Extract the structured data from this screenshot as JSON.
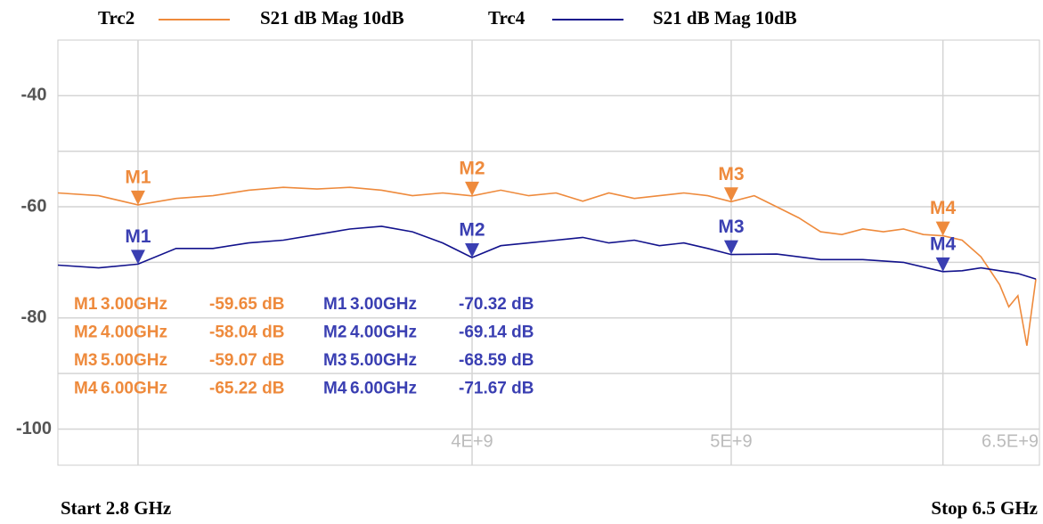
{
  "chart_data": {
    "type": "line",
    "xscale": "log",
    "xlim": [
      2800000000,
      6500000000
    ],
    "ylim": [
      -106.5,
      -30
    ],
    "xticks": [
      {
        "value": 4000000000,
        "label": "4E+9"
      },
      {
        "value": 5000000000,
        "label": "5E+9"
      },
      {
        "value": 6500000000,
        "label": "6.5E+9"
      }
    ],
    "xgrid": [
      3000000000,
      4000000000,
      5000000000,
      6000000000
    ],
    "yticks": [
      -40,
      -60,
      -80,
      -100
    ],
    "ygrid": [
      -100,
      -90,
      -80,
      -70,
      -60,
      -50,
      -40
    ],
    "grid": true,
    "start_label": "Start 2.8 GHz",
    "stop_label": "Stop 6.5 GHz",
    "series": [
      {
        "name": "Trc2",
        "label": "S21 dB Mag 10dB",
        "color": "#ee8a3c",
        "x": [
          2800000000,
          2900000000,
          3000000000,
          3100000000,
          3200000000,
          3300000000,
          3400000000,
          3500000000,
          3600000000,
          3700000000,
          3800000000,
          3900000000,
          4000000000,
          4100000000,
          4200000000,
          4300000000,
          4400000000,
          4500000000,
          4600000000,
          4700000000,
          4800000000,
          4900000000,
          5000000000,
          5100000000,
          5200000000,
          5300000000,
          5400000000,
          5500000000,
          5600000000,
          5700000000,
          5800000000,
          5900000000,
          6000000000,
          6100000000,
          6200000000,
          6300000000,
          6350000000,
          6400000000,
          6450000000,
          6500000000
        ],
        "values": [
          -57.5,
          -58,
          -59.65,
          -58.5,
          -58,
          -57,
          -56.5,
          -56.8,
          -56.5,
          -57,
          -58,
          -57.5,
          -58.04,
          -57,
          -58,
          -57.5,
          -59,
          -57.5,
          -58.5,
          -58,
          -57.5,
          -58,
          -59.07,
          -58,
          -60,
          -62,
          -64.5,
          -65,
          -64,
          -64.5,
          -64,
          -65,
          -65.22,
          -66,
          -69,
          -74,
          -78,
          -76,
          -85,
          -73
        ],
        "markers": [
          {
            "name": "M1",
            "x": 3000000000,
            "value": -59.65,
            "freq_label": "3.00GHz",
            "value_label": "-59.65 dB"
          },
          {
            "name": "M2",
            "x": 4000000000,
            "value": -58.04,
            "freq_label": "4.00GHz",
            "value_label": "-58.04 dB"
          },
          {
            "name": "M3",
            "x": 5000000000,
            "value": -59.07,
            "freq_label": "5.00GHz",
            "value_label": "-59.07 dB"
          },
          {
            "name": "M4",
            "x": 6000000000,
            "value": -65.22,
            "freq_label": "6.00GHz",
            "value_label": "-65.22 dB"
          }
        ]
      },
      {
        "name": "Trc4",
        "label": "S21 dB Mag 10dB",
        "color": "#12128c",
        "x": [
          2800000000,
          2900000000,
          3000000000,
          3100000000,
          3200000000,
          3300000000,
          3400000000,
          3500000000,
          3600000000,
          3700000000,
          3800000000,
          3900000000,
          4000000000,
          4100000000,
          4200000000,
          4300000000,
          4400000000,
          4500000000,
          4600000000,
          4700000000,
          4800000000,
          4900000000,
          5000000000,
          5200000000,
          5400000000,
          5600000000,
          5800000000,
          6000000000,
          6100000000,
          6200000000,
          6300000000,
          6400000000,
          6500000000
        ],
        "values": [
          -70.5,
          -71,
          -70.32,
          -67.5,
          -67.5,
          -66.5,
          -66,
          -65,
          -64,
          -63.5,
          -64.5,
          -66.5,
          -69.14,
          -67,
          -66.5,
          -66,
          -65.5,
          -66.5,
          -66,
          -67,
          -66.5,
          -67.5,
          -68.59,
          -68.5,
          -69.5,
          -69.5,
          -70,
          -71.67,
          -71.5,
          -71,
          -71.5,
          -72,
          -73
        ],
        "markers": [
          {
            "name": "M1",
            "x": 3000000000,
            "value": -70.32,
            "freq_label": "3.00GHz",
            "value_label": "-70.32 dB"
          },
          {
            "name": "M2",
            "x": 4000000000,
            "value": -69.14,
            "freq_label": "4.00GHz",
            "value_label": "-69.14 dB"
          },
          {
            "name": "M3",
            "x": 5000000000,
            "value": -68.59,
            "freq_label": "5.00GHz",
            "value_label": "-68.59 dB"
          },
          {
            "name": "M4",
            "x": 6000000000,
            "value": -71.67,
            "freq_label": "6.00GHz",
            "value_label": "-71.67 dB"
          }
        ]
      }
    ]
  }
}
